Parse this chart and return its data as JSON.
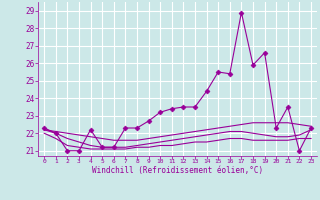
{
  "xlabel": "Windchill (Refroidissement éolien,°C)",
  "x_values": [
    0,
    1,
    2,
    3,
    4,
    5,
    6,
    7,
    8,
    9,
    10,
    11,
    12,
    13,
    14,
    15,
    16,
    17,
    18,
    19,
    20,
    21,
    22,
    23
  ],
  "line1": [
    22.3,
    22.0,
    21.0,
    21.0,
    22.2,
    21.2,
    21.2,
    22.3,
    22.3,
    22.7,
    23.2,
    23.4,
    23.5,
    23.5,
    24.4,
    25.5,
    25.4,
    28.9,
    25.9,
    26.6,
    22.3,
    23.5,
    21.0,
    22.3
  ],
  "line2": [
    22.2,
    22.1,
    22.0,
    21.9,
    21.8,
    21.7,
    21.6,
    21.6,
    21.6,
    21.7,
    21.8,
    21.9,
    22.0,
    22.1,
    22.2,
    22.3,
    22.4,
    22.5,
    22.6,
    22.6,
    22.6,
    22.6,
    22.5,
    22.4
  ],
  "line3": [
    22.0,
    21.7,
    21.3,
    21.2,
    21.1,
    21.1,
    21.1,
    21.1,
    21.2,
    21.2,
    21.3,
    21.3,
    21.4,
    21.5,
    21.5,
    21.6,
    21.7,
    21.7,
    21.6,
    21.6,
    21.6,
    21.6,
    21.7,
    21.7
  ],
  "line4": [
    22.2,
    22.0,
    21.7,
    21.5,
    21.3,
    21.2,
    21.2,
    21.2,
    21.3,
    21.4,
    21.5,
    21.6,
    21.7,
    21.8,
    21.9,
    22.0,
    22.1,
    22.1,
    22.0,
    21.9,
    21.8,
    21.8,
    21.9,
    22.2
  ],
  "color": "#990099",
  "bg_color": "#cce8e8",
  "grid_color": "#ffffff",
  "yticks": [
    21,
    22,
    23,
    24,
    25,
    26,
    27,
    28,
    29
  ],
  "xticks": [
    0,
    1,
    2,
    3,
    4,
    5,
    6,
    7,
    8,
    9,
    10,
    11,
    12,
    13,
    14,
    15,
    16,
    17,
    18,
    19,
    20,
    21,
    22,
    23
  ],
  "marker": "D",
  "markersize": 2.5,
  "linewidth": 0.8
}
